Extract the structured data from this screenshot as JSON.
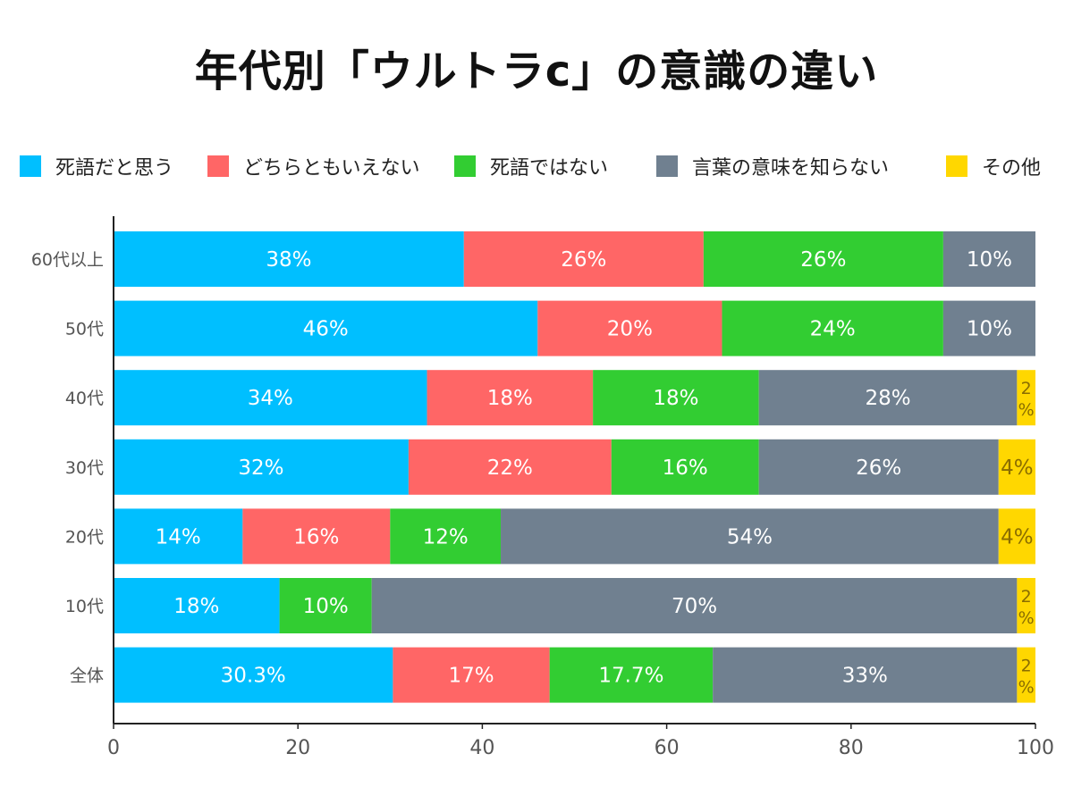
{
  "title": "年代別「ウルトラc」の意識の違い",
  "legend": [
    {
      "label": "死語だと思う",
      "color": "#00BFFF"
    },
    {
      "label": "どちらともいえない",
      "color": "#FF6666"
    },
    {
      "label": "死語ではない",
      "color": "#32CD32"
    },
    {
      "label": "言葉の意味を知らない",
      "color": "#708090"
    },
    {
      "label": "その他",
      "color": "#FFD700"
    }
  ],
  "chart_data": {
    "type": "bar",
    "orientation": "horizontal",
    "stacked": true,
    "title": "年代別「ウルトラc」の意識の違い",
    "categories": [
      "60代以上",
      "50代",
      "40代",
      "30代",
      "20代",
      "10代",
      "全体"
    ],
    "series": [
      {
        "name": "死語だと思う",
        "color": "#00BFFF",
        "values": [
          38,
          46,
          34,
          32,
          14,
          18,
          30.3
        ],
        "labels": [
          "38%",
          "46%",
          "34%",
          "32%",
          "14%",
          "18%",
          "30.3%"
        ]
      },
      {
        "name": "どちらともいえない",
        "color": "#FF6666",
        "values": [
          26,
          20,
          18,
          22,
          16,
          0,
          17
        ],
        "labels": [
          "26%",
          "20%",
          "18%",
          "22%",
          "16%",
          "",
          "17%"
        ]
      },
      {
        "name": "死語ではない",
        "color": "#32CD32",
        "values": [
          26,
          24,
          18,
          16,
          12,
          10,
          17.7
        ],
        "labels": [
          "26%",
          "24%",
          "18%",
          "16%",
          "12%",
          "10%",
          "17.7%"
        ]
      },
      {
        "name": "言葉の意味を知らない",
        "color": "#708090",
        "values": [
          10,
          10,
          28,
          26,
          54,
          70,
          33
        ],
        "labels": [
          "10%",
          "10%",
          "28%",
          "26%",
          "54%",
          "70%",
          "33%"
        ]
      },
      {
        "name": "その他",
        "color": "#FFD700",
        "values": [
          0,
          0,
          2,
          4,
          4,
          2,
          2
        ],
        "labels": [
          "",
          "",
          "2%",
          "4%",
          "4%",
          "2%",
          "2%"
        ]
      }
    ],
    "xlim": [
      0,
      100
    ],
    "xticks": [
      0,
      20,
      40,
      60,
      80,
      100
    ],
    "grid": false,
    "legend_position": "top"
  }
}
